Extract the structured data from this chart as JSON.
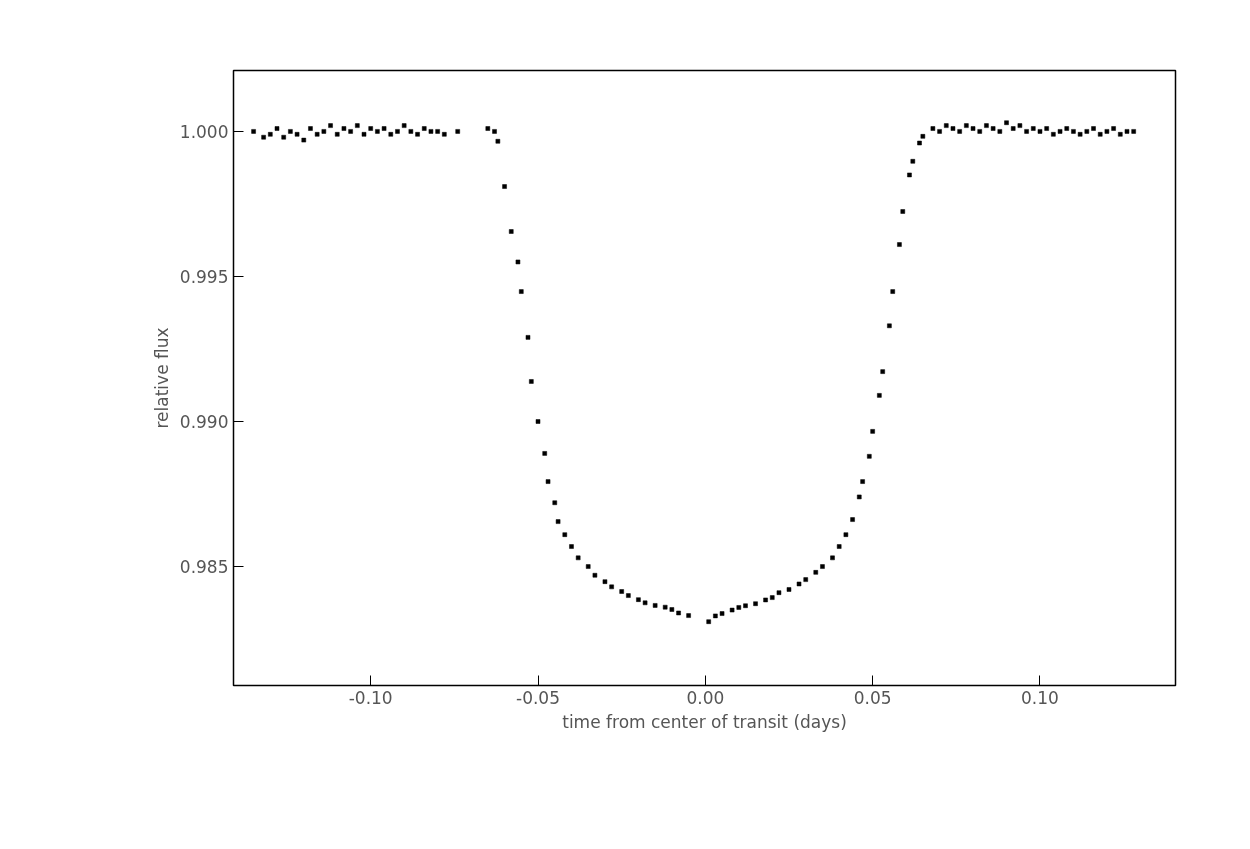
{
  "chart_data": {
    "type": "scatter",
    "xlabel": "time from center of transit (days)",
    "ylabel": "relative flux",
    "x": [
      -0.135,
      -0.132,
      -0.13,
      -0.128,
      -0.126,
      -0.124,
      -0.122,
      -0.12,
      -0.118,
      -0.116,
      -0.114,
      -0.112,
      -0.11,
      -0.108,
      -0.106,
      -0.104,
      -0.102,
      -0.1,
      -0.098,
      -0.096,
      -0.094,
      -0.092,
      -0.09,
      -0.088,
      -0.086,
      -0.084,
      -0.082,
      -0.08,
      -0.078,
      -0.074,
      -0.065,
      -0.063,
      -0.062,
      -0.06,
      -0.058,
      -0.056,
      -0.055,
      -0.053,
      -0.052,
      -0.05,
      -0.048,
      -0.047,
      -0.045,
      -0.044,
      -0.042,
      -0.04,
      -0.038,
      -0.035,
      -0.033,
      -0.03,
      -0.028,
      -0.025,
      -0.023,
      -0.02,
      -0.018,
      -0.015,
      -0.012,
      -0.01,
      -0.008,
      -0.005,
      0.001,
      0.003,
      0.005,
      0.008,
      0.01,
      0.012,
      0.015,
      0.018,
      0.02,
      0.022,
      0.025,
      0.028,
      0.03,
      0.033,
      0.035,
      0.038,
      0.04,
      0.042,
      0.044,
      0.046,
      0.047,
      0.049,
      0.05,
      0.052,
      0.053,
      0.055,
      0.056,
      0.058,
      0.059,
      0.061,
      0.062,
      0.064,
      0.065,
      0.068,
      0.07,
      0.072,
      0.074,
      0.076,
      0.078,
      0.08,
      0.082,
      0.084,
      0.086,
      0.088,
      0.09,
      0.092,
      0.094,
      0.096,
      0.098,
      0.1,
      0.102,
      0.104,
      0.106,
      0.108,
      0.11,
      0.112,
      0.114,
      0.116,
      0.118,
      0.12,
      0.122,
      0.124,
      0.126,
      0.128
    ],
    "series": [
      {
        "color": "#000000",
        "values": [
          1.0,
          0.9998,
          0.9999,
          1.0001,
          0.9998,
          1.0,
          0.9999,
          0.9997,
          1.0001,
          0.9999,
          1.0,
          1.0002,
          0.9999,
          1.0001,
          1.0,
          1.0002,
          0.9999,
          1.0001,
          1.0,
          1.0001,
          0.9999,
          1.0,
          1.0002,
          1.0,
          0.9999,
          1.0001,
          1.0,
          1.0,
          0.9999,
          1.0,
          1.0001,
          1.0,
          0.99966,
          0.9981,
          0.99655,
          0.9955,
          0.99448,
          0.9929,
          0.99138,
          0.99,
          0.9889,
          0.98793,
          0.9872,
          0.98655,
          0.9861,
          0.98569,
          0.9853,
          0.985,
          0.9847,
          0.98448,
          0.9843,
          0.98414,
          0.984,
          0.98386,
          0.98375,
          0.98366,
          0.9836,
          0.98352,
          0.9834,
          0.98331,
          0.9831,
          0.9833,
          0.98338,
          0.9835,
          0.98359,
          0.98365,
          0.98372,
          0.98385,
          0.98393,
          0.9841,
          0.98421,
          0.9844,
          0.98455,
          0.9848,
          0.985,
          0.9853,
          0.98569,
          0.9861,
          0.98662,
          0.9874,
          0.98793,
          0.9888,
          0.98966,
          0.9909,
          0.99172,
          0.9933,
          0.99448,
          0.9961,
          0.99724,
          0.9985,
          0.99897,
          0.9996,
          0.99983,
          1.0001,
          1.0,
          1.0002,
          1.0001,
          1.0,
          1.0002,
          1.0001,
          1.0,
          1.0002,
          1.0001,
          1.0,
          1.0003,
          1.0001,
          1.0002,
          1.0,
          1.0001,
          1.0,
          1.0001,
          0.9999,
          1.0,
          1.0001,
          1.0,
          0.9999,
          1.0,
          1.0001,
          0.9999,
          1.0,
          1.0001,
          0.9999,
          1.0,
          1.0
        ]
      }
    ],
    "xlim": [
      -0.141,
      0.1405
    ],
    "ylim": [
      0.9809,
      1.0021
    ],
    "xticks": [
      {
        "value": -0.1,
        "label": "-0.10"
      },
      {
        "value": -0.05,
        "label": "-0.05"
      },
      {
        "value": 0,
        "label": "0.00"
      },
      {
        "value": 0.05,
        "label": "0.05"
      },
      {
        "value": 0.1,
        "label": "0.10"
      }
    ],
    "yticks": [
      {
        "value": 0.985,
        "label": "0.985"
      },
      {
        "value": 0.99,
        "label": "0.990"
      },
      {
        "value": 0.995,
        "label": "0.995"
      },
      {
        "value": 1,
        "label": "1.000"
      }
    ],
    "marker": "square",
    "grid": false
  }
}
